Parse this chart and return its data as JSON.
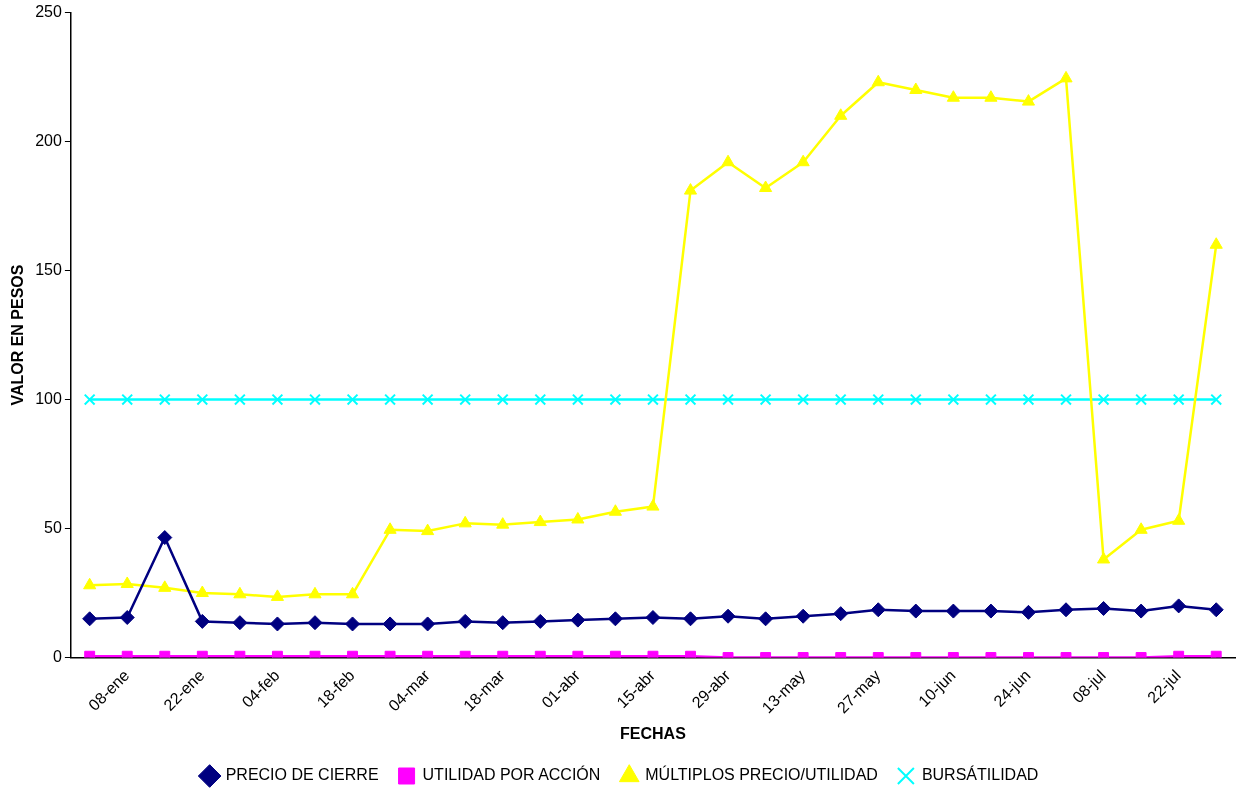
{
  "chart_data": {
    "type": "line",
    "xlabel": "FECHAS",
    "ylabel": "VALOR EN PESOS",
    "categories": [
      null,
      "08-ene",
      null,
      "22-ene",
      null,
      "04-feb",
      null,
      "18-feb",
      null,
      "04-mar",
      null,
      "18-mar",
      null,
      "01-abr",
      null,
      "15-abr",
      null,
      "29-abr",
      null,
      "13-may",
      null,
      "27-may",
      null,
      "10-jun",
      null,
      "24-jun",
      null,
      "08-jul",
      null,
      "22-jul",
      null
    ],
    "ylim": [
      0,
      250
    ],
    "yticks": [
      0,
      50,
      100,
      150,
      200,
      250
    ],
    "grid": false,
    "legend": "bottom",
    "series": [
      {
        "name": "PRECIO DE CIERRE",
        "color": "#000080",
        "marker": "diamond",
        "values": [
          15,
          15.5,
          46.5,
          14,
          13.5,
          13,
          13.5,
          13,
          13,
          13,
          14,
          13.5,
          14,
          14.5,
          15,
          15.5,
          15,
          16,
          15,
          16,
          17,
          18.5,
          18,
          18,
          18,
          17.5,
          18.5,
          19,
          18,
          20,
          18.5
        ]
      },
      {
        "name": "UTILIDAD POR ACCIÓN",
        "color": "#ff00ff",
        "marker": "square",
        "values": [
          0.5,
          0.5,
          0.5,
          0.5,
          0.5,
          0.5,
          0.5,
          0.5,
          0.5,
          0.5,
          0.5,
          0.5,
          0.5,
          0.5,
          0.5,
          0.5,
          0.5,
          0,
          0,
          0,
          0,
          0,
          0,
          0,
          0,
          0,
          0,
          0,
          0,
          0.5,
          0.5
        ]
      },
      {
        "name": "MÚLTIPLOS PRECIO/UTILIDAD",
        "color": "#ffff00",
        "marker": "triangle",
        "values": [
          28,
          28.5,
          27,
          25,
          24.5,
          23.5,
          24.5,
          24.5,
          49.5,
          49,
          52,
          51.5,
          52.5,
          53.5,
          56.5,
          58.5,
          181,
          192,
          182,
          192,
          210,
          223,
          220,
          217,
          217,
          215.5,
          224.5,
          38,
          49.5,
          53,
          160
        ]
      },
      {
        "name": "BURSÁTILIDAD",
        "color": "#00ffff",
        "marker": "cross",
        "values": [
          100,
          100,
          100,
          100,
          100,
          100,
          100,
          100,
          100,
          100,
          100,
          100,
          100,
          100,
          100,
          100,
          100,
          100,
          100,
          100,
          100,
          100,
          100,
          100,
          100,
          100,
          100,
          100,
          100,
          100,
          100
        ]
      }
    ]
  }
}
